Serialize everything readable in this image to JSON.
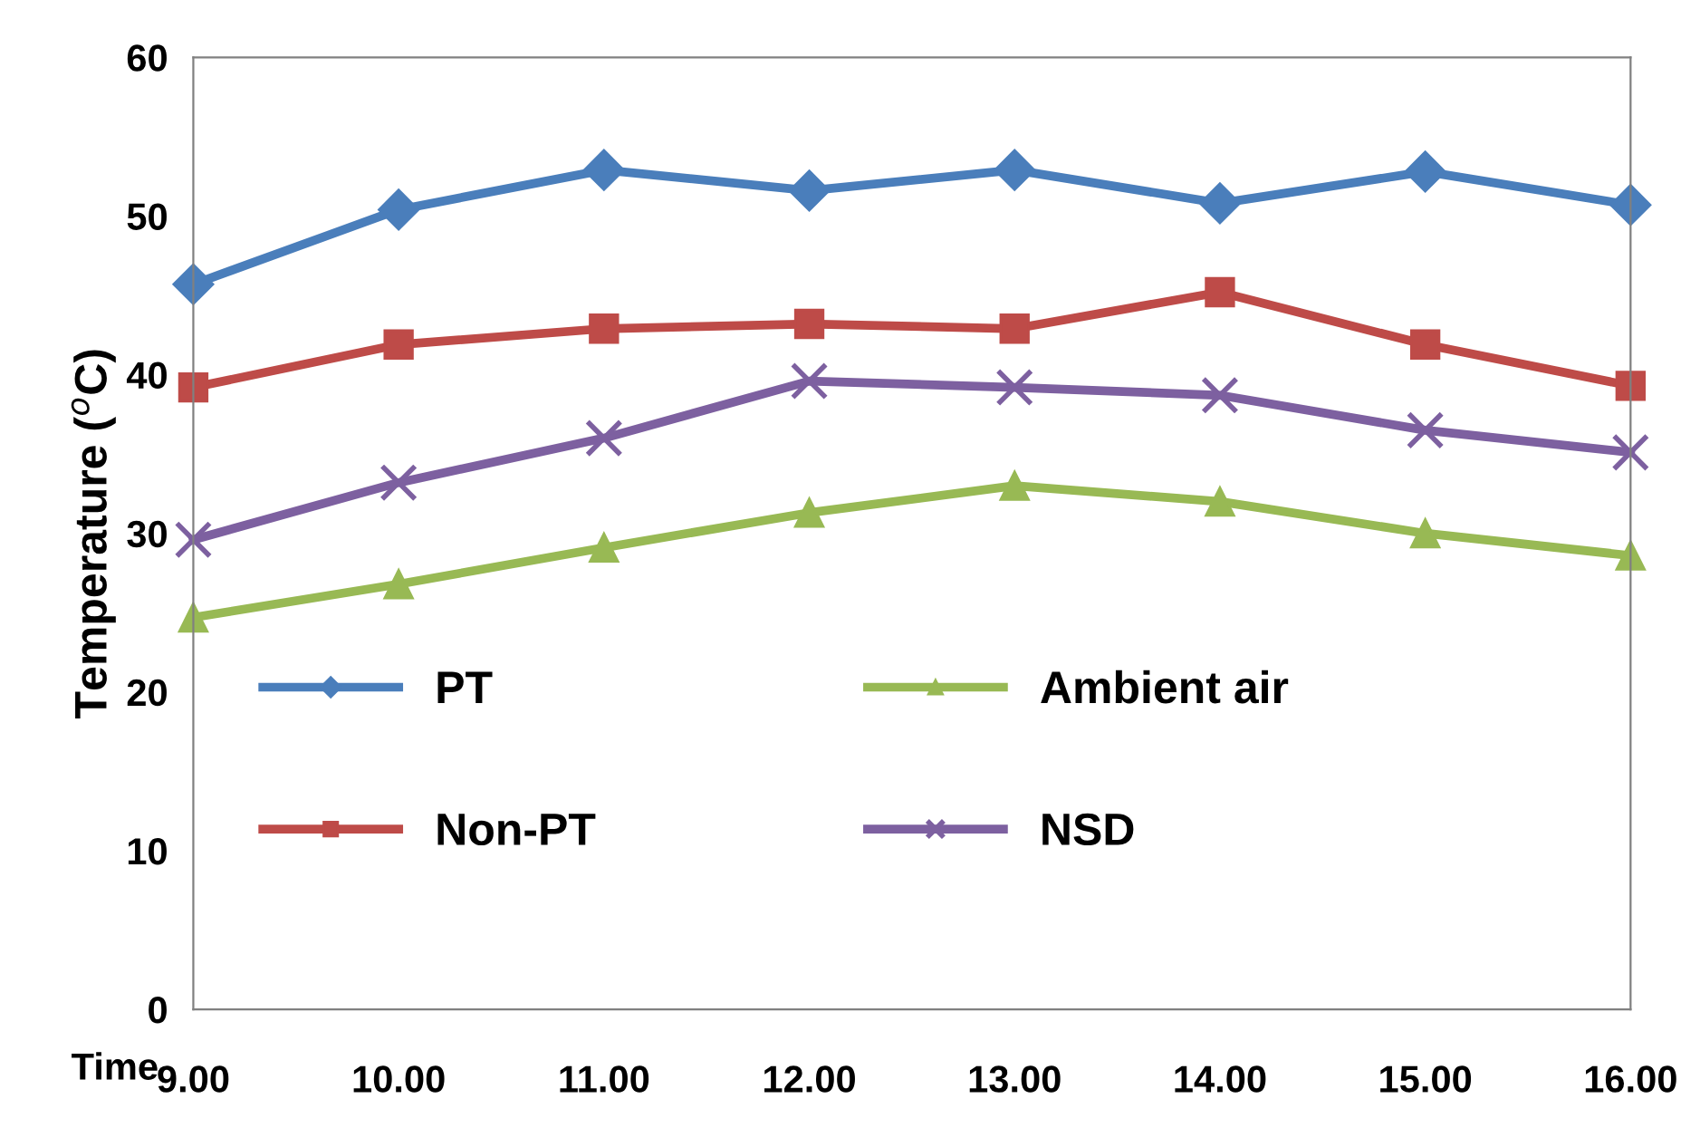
{
  "chart_data": {
    "type": "line",
    "xlabel": "Time",
    "ylabel": "Temperature ($^{o}$C)",
    "x": [
      9,
      10,
      11,
      12,
      13,
      14,
      15,
      16
    ],
    "series": [
      {
        "name": "PT",
        "color": "#4a7ebb",
        "marker": "diamond",
        "values": [
          45.7,
          50.4,
          52.9,
          51.6,
          52.9,
          50.8,
          52.8,
          50.7
        ]
      },
      {
        "name": "Non-PT",
        "color": "#be4b48",
        "marker": "square",
        "values": [
          39.2,
          41.9,
          42.9,
          43.2,
          42.9,
          45.2,
          41.9,
          39.3
        ]
      },
      {
        "name": "Ambient air",
        "color": "#98b954",
        "marker": "triangle",
        "values": [
          24.7,
          26.8,
          29.1,
          31.3,
          33.0,
          32.0,
          30.0,
          28.6
        ]
      },
      {
        "name": "NSD",
        "color": "#7d60a0",
        "marker": "cross",
        "values": [
          29.6,
          33.2,
          36.0,
          39.6,
          39.2,
          38.7,
          36.5,
          35.1
        ]
      }
    ],
    "xlim": [
      9,
      16
    ],
    "xticks": [
      {
        "value": 9,
        "label": "9.00"
      },
      {
        "value": 10,
        "label": "10.00"
      },
      {
        "value": 11,
        "label": "11.00"
      },
      {
        "value": 12,
        "label": "12.00"
      },
      {
        "value": 13,
        "label": "13.00"
      },
      {
        "value": 14,
        "label": "14.00"
      },
      {
        "value": 15,
        "label": "15.00"
      },
      {
        "value": 16,
        "label": "16.00"
      }
    ],
    "ylim": [
      0,
      60
    ],
    "yticks": [
      0,
      10,
      20,
      30,
      40,
      50,
      60
    ],
    "grid": false,
    "legend": "bottom left",
    "line_style": "solid"
  }
}
